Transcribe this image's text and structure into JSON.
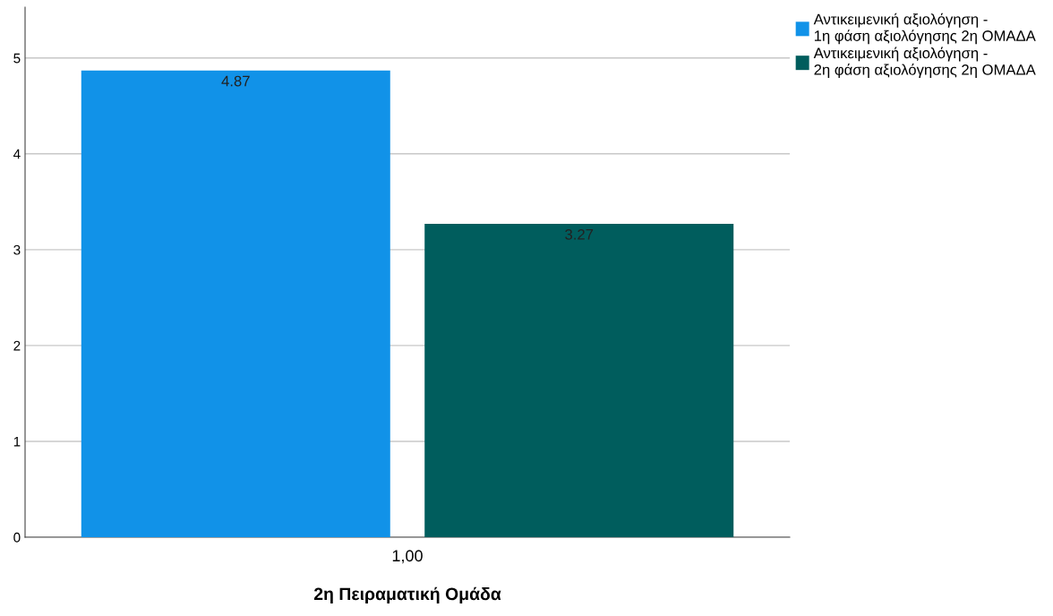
{
  "chart_data": {
    "type": "bar",
    "categories": [
      "1,00"
    ],
    "xlabel": "2η Πειραματική Ομάδα",
    "series": [
      {
        "name": "Αντικειμενική αξιολόγηση - 1η φάση αξιολόγησης 2η ΟΜΑΔΑ",
        "color": "#1192e8",
        "values": [
          4.87
        ]
      },
      {
        "name": "Αντικειμενική αξιολόγηση - 2η φάση αξιολόγησης 2η ΟΜΑΔΑ",
        "color": "#005d5d",
        "values": [
          3.27
        ]
      }
    ],
    "ylim": [
      0,
      5.53
    ],
    "yticks": [
      0,
      1,
      2,
      3,
      4,
      5
    ],
    "grid": "y",
    "legend": "top right",
    "data_labels": true
  }
}
